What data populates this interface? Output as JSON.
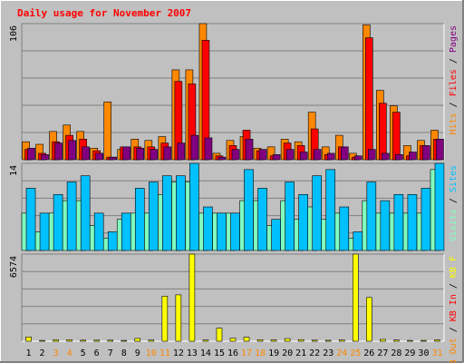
{
  "chart_data": {
    "type": "bar",
    "title": "Daily usage for November 2007",
    "categories": [
      "1",
      "2",
      "3",
      "4",
      "5",
      "6",
      "7",
      "8",
      "9",
      "10",
      "11",
      "12",
      "13",
      "14",
      "15",
      "16",
      "17",
      "18",
      "19",
      "20",
      "21",
      "22",
      "23",
      "24",
      "25",
      "26",
      "27",
      "28",
      "29",
      "30",
      "31"
    ],
    "weekend_days": [
      "3",
      "4",
      "10",
      "11",
      "17",
      "18",
      "24",
      "25",
      "31"
    ],
    "panels": [
      {
        "id": "top",
        "max_label": "106",
        "ymax": 106,
        "legend": [
          {
            "text": "Hits",
            "color": "#ff8800"
          },
          {
            "text": " / ",
            "color": "#000000"
          },
          {
            "text": "Files",
            "color": "#ff0000"
          },
          {
            "text": " / ",
            "color": "#000000"
          },
          {
            "text": "Pages",
            "color": "#800080"
          }
        ],
        "series": [
          {
            "name": "Hits",
            "color": "#ff8800",
            "values": [
              14,
              12,
              22,
              27,
              22,
              9,
              45,
              8,
              16,
              15,
              18,
              70,
              70,
              106,
              5,
              15,
              18,
              9,
              10,
              16,
              14,
              37,
              10,
              19,
              5,
              105,
              54,
              42,
              11,
              15,
              23
            ]
          },
          {
            "name": "Files",
            "color": "#ff0000",
            "values": [
              8,
              5,
              14,
              19,
              16,
              7,
              2,
              10,
              10,
              10,
              13,
              61,
              59,
              93,
              3,
              11,
              23,
              7,
              3,
              13,
              11,
              24,
              4,
              10,
              2,
              95,
              44,
              37,
              3,
              11,
              16
            ]
          },
          {
            "name": "Pages",
            "color": "#800080",
            "values": [
              9,
              4,
              13,
              15,
              10,
              5,
              2,
              10,
              9,
              8,
              10,
              13,
              19,
              17,
              2,
              8,
              16,
              8,
              4,
              8,
              6,
              8,
              5,
              10,
              3,
              8,
              5,
              4,
              6,
              11,
              16
            ]
          }
        ]
      },
      {
        "id": "middle",
        "max_label": "14",
        "ymax": 14,
        "legend": [
          {
            "text": "Visits",
            "color": "#80ffc0"
          },
          {
            "text": " / ",
            "color": "#000000"
          },
          {
            "text": "Sites",
            "color": "#00c0ff"
          }
        ],
        "series": [
          {
            "name": "Visits",
            "color": "#80ffc0",
            "values": [
              6,
              3,
              6,
              8,
              8,
              4,
              2,
              5,
              6,
              6,
              9,
              11,
              11,
              6,
              6,
              6,
              8,
              8,
              4,
              8,
              5,
              7,
              5,
              6,
              2,
              8,
              6,
              6,
              6,
              6,
              13
            ]
          },
          {
            "name": "Sites",
            "color": "#00c0ff",
            "values": [
              10,
              6,
              9,
              11,
              12,
              6,
              3,
              6,
              10,
              11,
              12,
              12,
              14,
              7,
              6,
              6,
              13,
              10,
              5,
              11,
              9,
              12,
              13,
              7,
              3,
              11,
              8,
              9,
              9,
              10,
              14
            ]
          }
        ]
      },
      {
        "id": "bottom",
        "max_label": "6574",
        "ymax": 6574,
        "legend": [
          {
            "text": "KB Out",
            "color": "#ff8800"
          },
          {
            "text": " / ",
            "color": "#000000"
          },
          {
            "text": "KB In",
            "color": "#ff0000"
          },
          {
            "text": " / ",
            "color": "#000000"
          },
          {
            "text": "KB F",
            "color": "#ffff00"
          }
        ],
        "series": [
          {
            "name": "KB F",
            "color": "#ffff00",
            "values": [
              320,
              60,
              110,
              110,
              80,
              80,
              80,
              60,
              210,
              90,
              3400,
              3500,
              6574,
              90,
              980,
              220,
              300,
              110,
              100,
              200,
              120,
              80,
              70,
              100,
              6574,
              3300,
              140,
              90,
              60,
              60,
              100
            ]
          }
        ]
      }
    ]
  }
}
